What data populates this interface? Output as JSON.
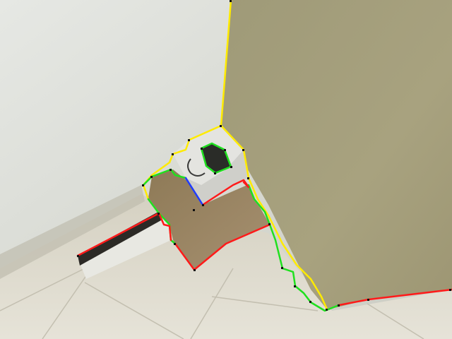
{
  "scene": {
    "kind": "camera photo with segmentation overlay",
    "overlay_colors": {
      "yellow": "#ffeb00",
      "green": "#1fe01f",
      "red": "#ff1a1a",
      "blue": "#1f3cff",
      "vertex": "#111111"
    },
    "surface_colors": {
      "wall": "#dcddd6",
      "panel": "#a7a07c",
      "floor": "#dcd8c8",
      "cardboard": "#9e8a66",
      "box_top": "#e3e3e0",
      "device_screen": "#2a2c28"
    }
  }
}
